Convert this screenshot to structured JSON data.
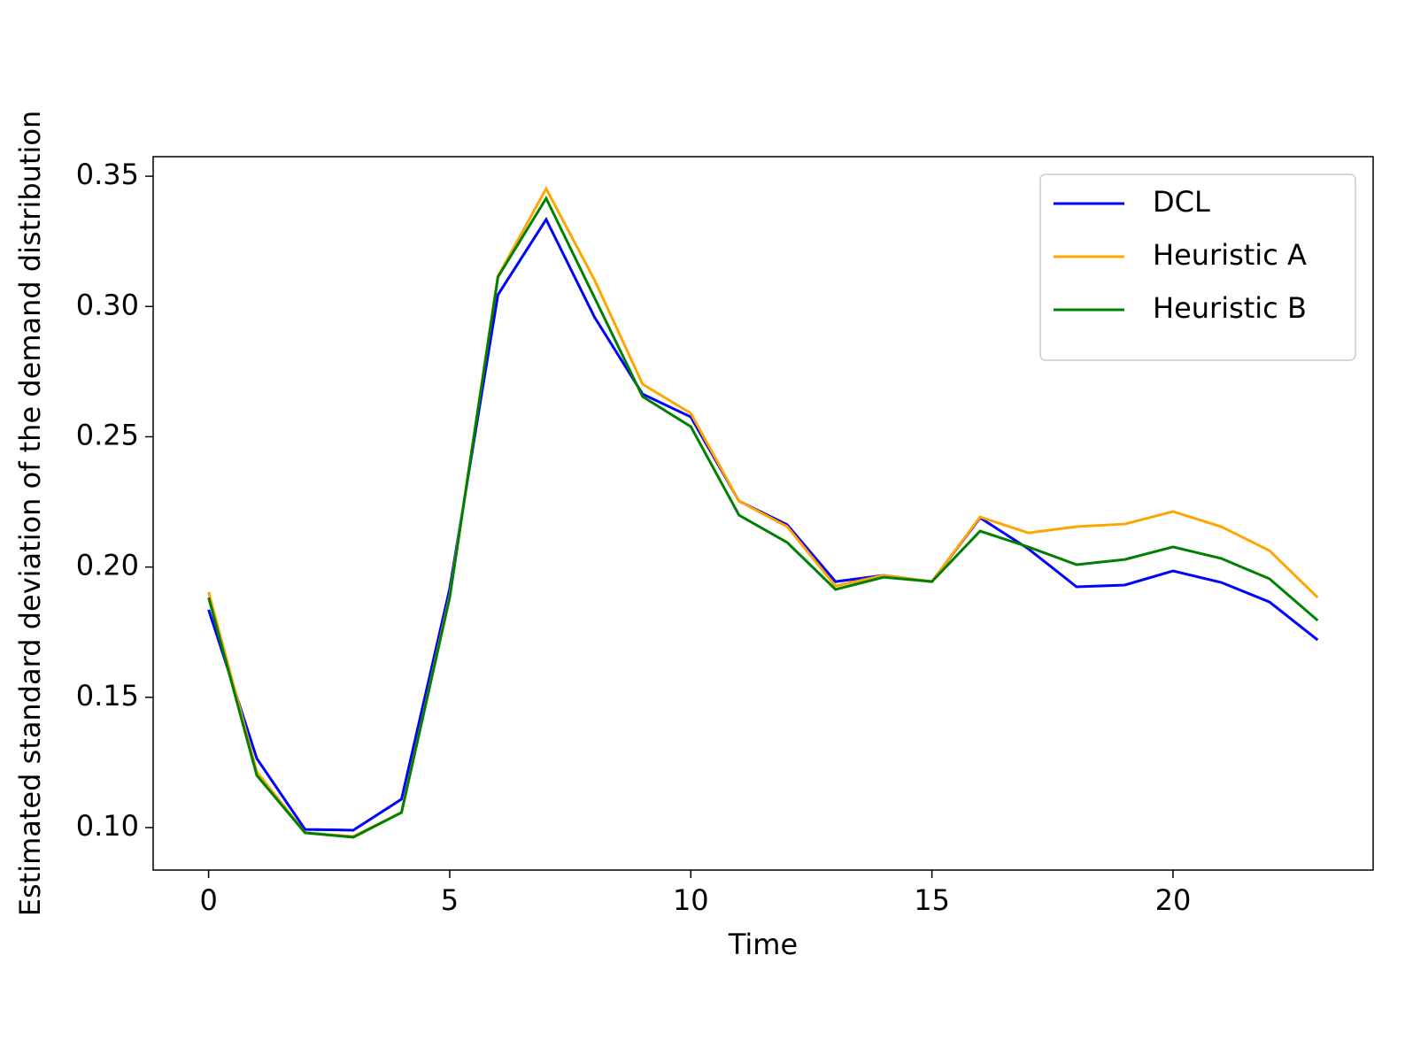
{
  "chart_data": {
    "type": "line",
    "xlabel": "Time",
    "ylabel": "Estimated standard deviation of the demand distribution",
    "x": [
      0,
      1,
      2,
      3,
      4,
      5,
      6,
      7,
      8,
      9,
      10,
      11,
      12,
      13,
      14,
      15,
      16,
      17,
      18,
      19,
      20,
      21,
      22,
      23
    ],
    "series": [
      {
        "name": "DCL",
        "color": "#0000ff",
        "values": [
          0.1836,
          0.1265,
          0.0993,
          0.099,
          0.1109,
          0.1917,
          0.3045,
          0.3334,
          0.296,
          0.2664,
          0.2576,
          0.2253,
          0.2162,
          0.1944,
          0.1968,
          0.1944,
          0.2189,
          0.207,
          0.1924,
          0.1931,
          0.1985,
          0.1941,
          0.1866,
          0.172
        ]
      },
      {
        "name": "Heuristic A",
        "color": "#ffa500",
        "values": [
          0.1904,
          0.1214,
          0.098,
          0.0966,
          0.1058,
          0.189,
          0.3116,
          0.3452,
          0.3103,
          0.2702,
          0.259,
          0.2253,
          0.2155,
          0.1927,
          0.1968,
          0.1944,
          0.2192,
          0.2131,
          0.2155,
          0.2165,
          0.2213,
          0.2155,
          0.2063,
          0.1883
        ]
      },
      {
        "name": "Heuristic B",
        "color": "#008000",
        "values": [
          0.1883,
          0.12,
          0.098,
          0.0963,
          0.1058,
          0.1883,
          0.3113,
          0.3415,
          0.3035,
          0.2654,
          0.2539,
          0.2199,
          0.2094,
          0.1914,
          0.1961,
          0.1944,
          0.2138,
          0.2077,
          0.2009,
          0.2029,
          0.2077,
          0.2033,
          0.1955,
          0.1795
        ]
      }
    ],
    "xlim": [
      -1.15,
      24.15
    ],
    "xticks": [
      0,
      5,
      10,
      15,
      20
    ],
    "ylim": [
      0.0837,
      0.3575
    ],
    "yticks": [
      {
        "value": 0.1,
        "label": "0.10"
      },
      0.15,
      {
        "value": 0.2,
        "label": "0.20"
      },
      0.25,
      {
        "value": 0.3,
        "label": "0.30"
      },
      0.35
    ],
    "legend": "upper right"
  }
}
